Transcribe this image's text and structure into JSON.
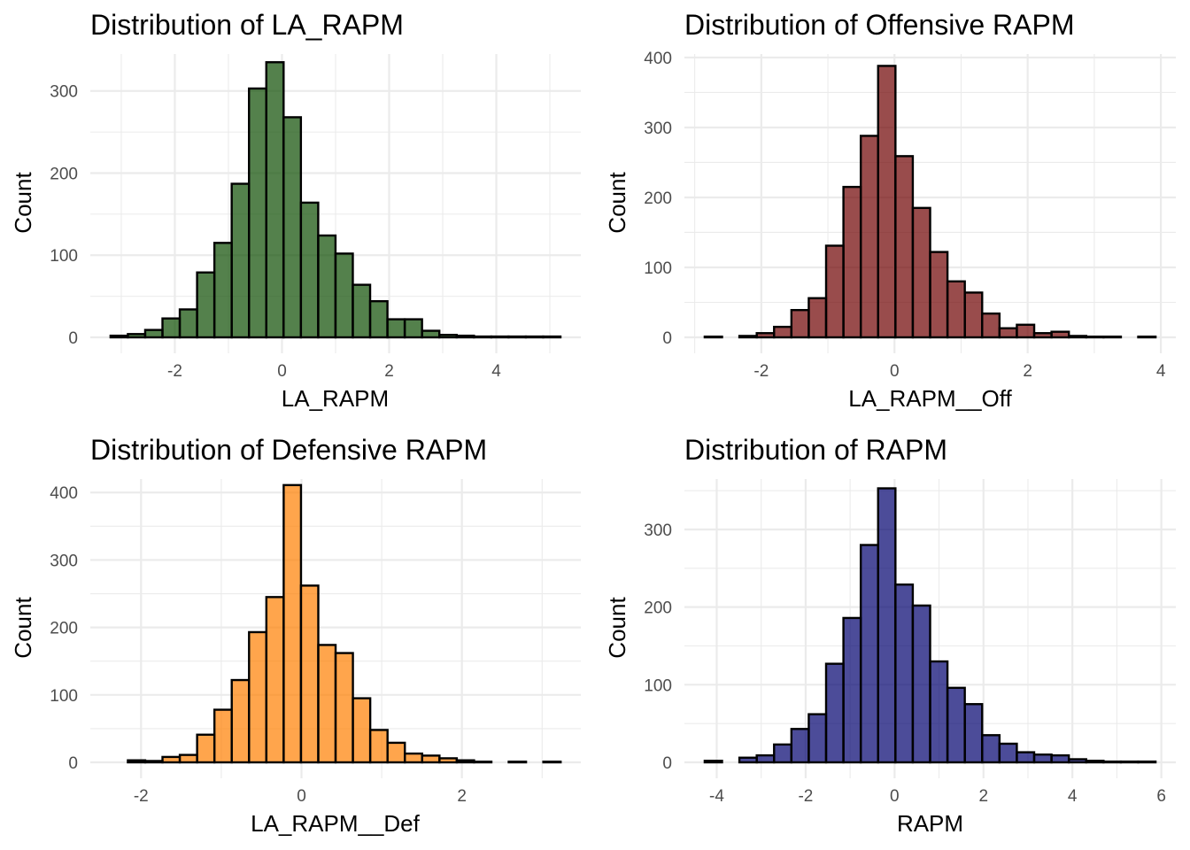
{
  "chart_data": [
    {
      "type": "bar",
      "title": "Distribution of LA_RAPM",
      "xlabel": "LA_RAPM",
      "ylabel": "Count",
      "color": "#0b4b00",
      "xlim": [
        -3.2,
        5.2
      ],
      "ylim": [
        0,
        345
      ],
      "x_ticks": [
        -2,
        0,
        2,
        4
      ],
      "x_tick_labels": [
        "-2",
        "0",
        "2",
        "4"
      ],
      "y_ticks": [
        0,
        100,
        200,
        300
      ],
      "y_tick_labels": [
        "0",
        "100",
        "200",
        "300"
      ],
      "bin_start": -3.2,
      "bin_width": 0.323,
      "values": [
        2,
        4,
        9,
        23,
        34,
        79,
        115,
        187,
        303,
        335,
        268,
        164,
        124,
        102,
        64,
        44,
        22,
        22,
        8,
        3,
        2,
        1,
        1,
        1,
        1,
        1
      ]
    },
    {
      "type": "bar",
      "title": "Distribution of Offensive RAPM",
      "xlabel": "LA_RAPM__Off",
      "ylabel": "Count",
      "color": "#6e0000",
      "xlim": [
        -2.85,
        3.92
      ],
      "ylim": [
        0,
        405
      ],
      "x_ticks": [
        -2,
        0,
        2,
        4
      ],
      "x_tick_labels": [
        "-2",
        "0",
        "2",
        "4"
      ],
      "y_ticks": [
        0,
        100,
        200,
        300,
        400
      ],
      "y_tick_labels": [
        "0",
        "100",
        "200",
        "300",
        "400"
      ],
      "bin_start": -2.85,
      "bin_width": 0.2604,
      "values": [
        1,
        0,
        2,
        6,
        15,
        39,
        56,
        131,
        215,
        288,
        388,
        259,
        185,
        122,
        80,
        64,
        34,
        13,
        18,
        6,
        8,
        2,
        1,
        1,
        0,
        1
      ]
    },
    {
      "type": "bar",
      "title": "Distribution of Defensive RAPM",
      "xlabel": "LA_RAPM__Def",
      "ylabel": "Count",
      "color": "#ff7f00",
      "xlim": [
        -2.38,
        3.23
      ],
      "ylim": [
        0,
        420
      ],
      "x_ticks": [
        -2,
        0,
        2
      ],
      "x_tick_labels": [
        "-2",
        "0",
        "2"
      ],
      "y_ticks": [
        0,
        100,
        200,
        300,
        400
      ],
      "y_tick_labels": [
        "0",
        "100",
        "200",
        "300",
        "400"
      ],
      "bin_start": -2.38,
      "bin_width": 0.2158,
      "values": [
        0,
        3,
        2,
        8,
        11,
        41,
        78,
        122,
        193,
        245,
        411,
        262,
        174,
        162,
        95,
        48,
        29,
        13,
        10,
        6,
        3,
        1,
        0,
        1,
        0,
        1
      ]
    },
    {
      "type": "bar",
      "title": "Distribution of RAPM",
      "xlabel": "RAPM",
      "ylabel": "Count",
      "color": "#00006e",
      "xlim": [
        -4.27,
        5.87
      ],
      "ylim": [
        0,
        365
      ],
      "x_ticks": [
        -4,
        -2,
        0,
        2,
        4,
        6
      ],
      "x_tick_labels": [
        "-4",
        "-2",
        "0",
        "2",
        "4",
        "6"
      ],
      "y_ticks": [
        0,
        100,
        200,
        300
      ],
      "y_tick_labels": [
        "0",
        "100",
        "200",
        "300"
      ],
      "bin_start": -4.27,
      "bin_width": 0.39,
      "values": [
        2,
        0,
        6,
        9,
        23,
        43,
        62,
        127,
        186,
        280,
        353,
        229,
        202,
        130,
        96,
        75,
        35,
        24,
        13,
        10,
        9,
        4,
        2,
        1,
        1,
        1
      ]
    }
  ]
}
